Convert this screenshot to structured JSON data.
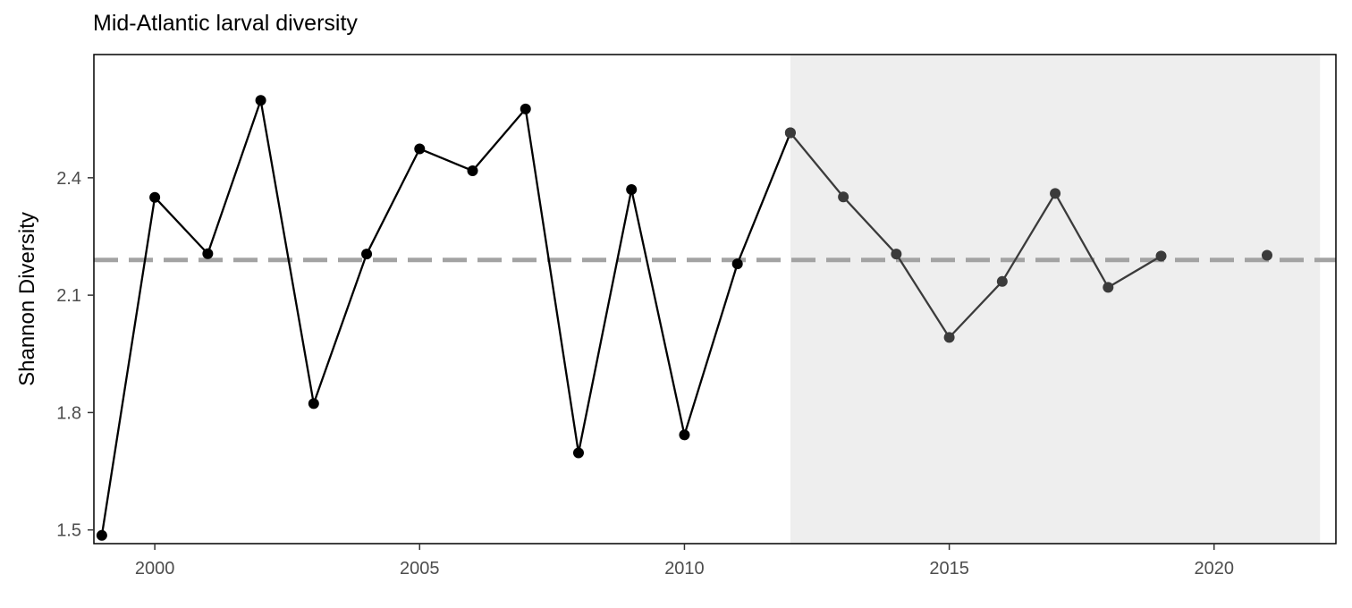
{
  "chart_data": {
    "type": "line",
    "title": "Mid-Atlantic larval diversity",
    "xlabel": "",
    "ylabel": "Shannon Diversity",
    "xlim": [
      1998.85,
      2022.3
    ],
    "ylim": [
      1.465,
      2.715
    ],
    "x_ticks": [
      2000,
      2005,
      2010,
      2015,
      2020
    ],
    "y_ticks": [
      1.5,
      1.8,
      2.1,
      2.4
    ],
    "y_tick_labels": [
      "1.5",
      "1.8",
      "2.1",
      "2.4"
    ],
    "grid": false,
    "shaded_region": {
      "x": [
        2012,
        2022
      ],
      "color": "#eeeeee"
    },
    "mean_line": {
      "value": 2.19,
      "style": "dashed",
      "color": "#a3a3a3"
    },
    "series": [
      {
        "color": "#000000",
        "x": [
          1999,
          2000,
          2001,
          2002,
          2003,
          2004,
          2005,
          2006,
          2007,
          2008,
          2009,
          2010,
          2011,
          2012
        ],
        "y": [
          1.486,
          2.35,
          2.206,
          2.598,
          1.823,
          2.205,
          2.474,
          2.418,
          2.576,
          1.697,
          2.37,
          1.743,
          2.18,
          2.515
        ]
      },
      {
        "color": "#3b3b3b",
        "x": [
          2012,
          2013,
          2014,
          2015,
          2016,
          2017,
          2018,
          2019
        ],
        "y": [
          2.515,
          2.351,
          2.205,
          1.992,
          2.135,
          2.36,
          2.12,
          2.2
        ]
      },
      {
        "color": "#3b3b3b",
        "x": [
          2021
        ],
        "y": [
          2.202
        ]
      }
    ]
  }
}
